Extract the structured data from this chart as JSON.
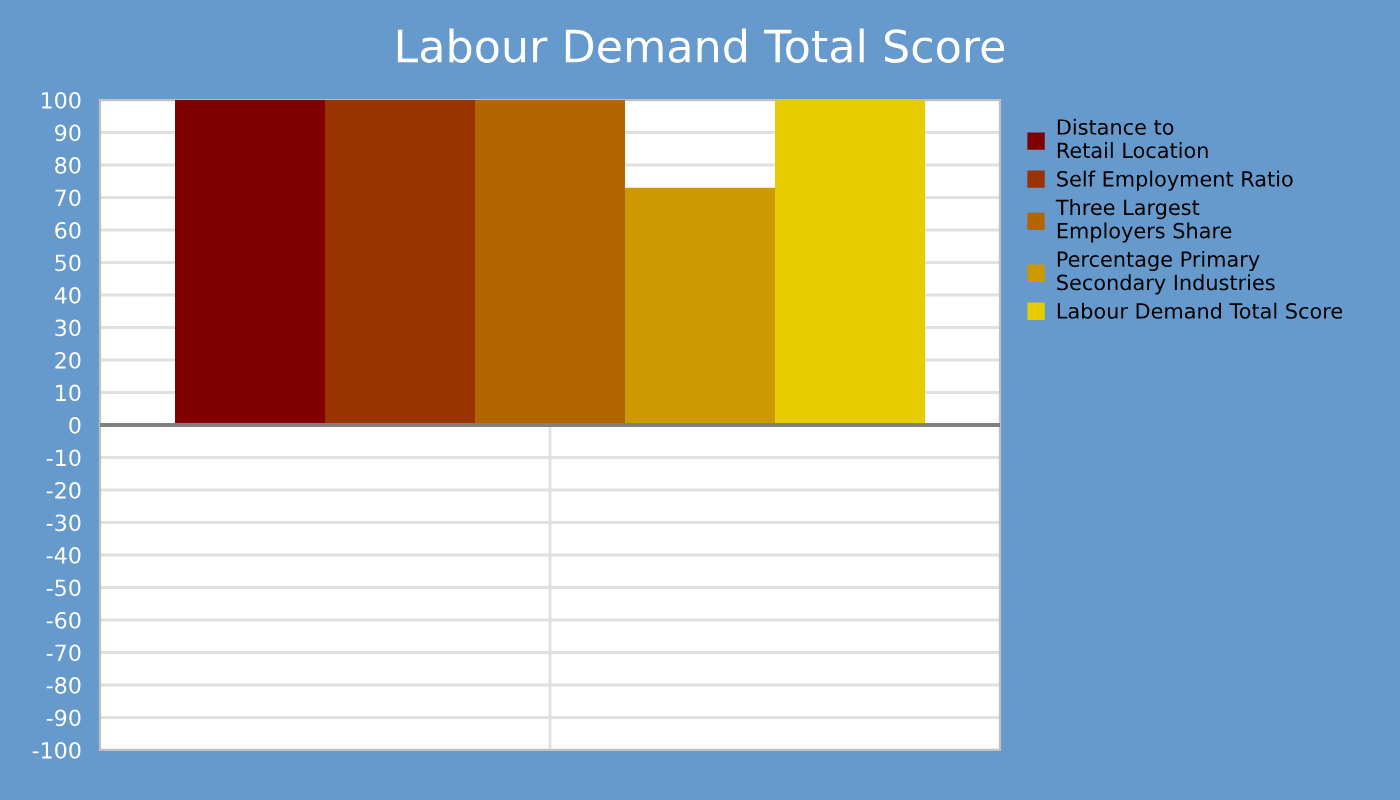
{
  "chart_data": {
    "type": "bar",
    "title": "Labour Demand Total Score",
    "categories": [
      null
    ],
    "series": [
      {
        "name": "Distance to\nRetail Location",
        "color": "#800000",
        "values": [
          100
        ]
      },
      {
        "name": "Self Employment Ratio",
        "color": "#993300",
        "values": [
          100
        ]
      },
      {
        "name": "Three Largest\nEmployers Share",
        "color": "#b36600",
        "values": [
          100
        ]
      },
      {
        "name": "Percentage Primary\nSecondary Industries",
        "color": "#cc9900",
        "values": [
          73
        ]
      },
      {
        "name": "Labour Demand Total Score",
        "color": "#e6cc00",
        "values": [
          100
        ]
      }
    ],
    "ylim": [
      -100,
      100
    ],
    "yticks": [
      -100,
      -90,
      -80,
      -70,
      -60,
      -50,
      -40,
      -30,
      -20,
      -10,
      0,
      10,
      20,
      30,
      40,
      50,
      60,
      70,
      80,
      90,
      100
    ],
    "grid": true,
    "legend": "right"
  }
}
